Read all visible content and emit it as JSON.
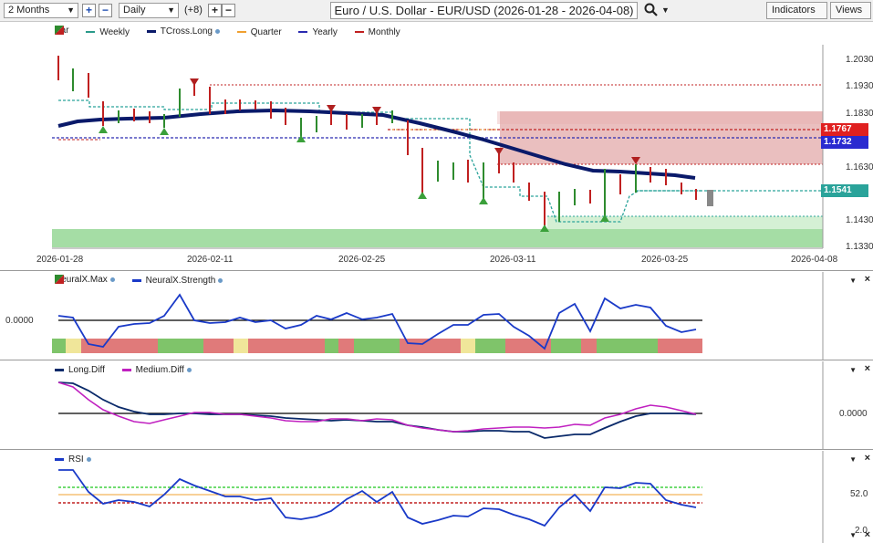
{
  "toolbar": {
    "period": "2 Months",
    "interval": "Daily",
    "offset": "(+8)",
    "title": "Euro / U.S. Dollar - EUR/USD (2026-01-28 - 2026-04-08)",
    "indicators_label": "Indicators",
    "views_label": "Views"
  },
  "price_pane": {
    "legend": [
      {
        "label": "Bar",
        "color": "#2e8b2e"
      },
      {
        "label": "Weekly",
        "color": "#2a9a8a"
      },
      {
        "label": "TCross.Long",
        "color": "#0a1a6a"
      },
      {
        "label": "Quarter",
        "color": "#f0a030"
      },
      {
        "label": "Yearly",
        "color": "#2a2ab0"
      },
      {
        "label": "Monthly",
        "color": "#c02020"
      }
    ],
    "axis_labels": [
      "1.2030",
      "1.1930",
      "1.1830",
      "1.1630",
      "1.1430",
      "1.1330"
    ],
    "price_tags": [
      {
        "value": "1.1767",
        "color": "#e02020"
      },
      {
        "value": "1.1732",
        "color": "#2a2ad0"
      },
      {
        "value": "1.1541",
        "color": "#2aa39a"
      }
    ],
    "dates": [
      "2026-01-28",
      "2026-02-11",
      "2026-02-25",
      "2026-03-11",
      "2026-03-25",
      "2026-04-08"
    ]
  },
  "neuralx_pane": {
    "legend": [
      {
        "label": "NeuralX.Max",
        "color": "#2e8b2e"
      },
      {
        "label": "NeuralX.Strength",
        "color": "#1a3ac8"
      }
    ],
    "axis_label": "0.0000"
  },
  "diff_pane": {
    "legend": [
      {
        "label": "Long.Diff",
        "color": "#0a2a6a"
      },
      {
        "label": "Medium.Diff",
        "color": "#c020c0"
      }
    ],
    "axis_label": "0.0000"
  },
  "rsi_pane": {
    "legend": [
      {
        "label": "RSI",
        "color": "#1a3ac8"
      }
    ],
    "axis_labels": [
      "52.0",
      "2.0"
    ]
  },
  "icons": {
    "close": "×",
    "collapse": "▼",
    "plus": "+",
    "minus": "−",
    "search": "search-icon"
  }
}
